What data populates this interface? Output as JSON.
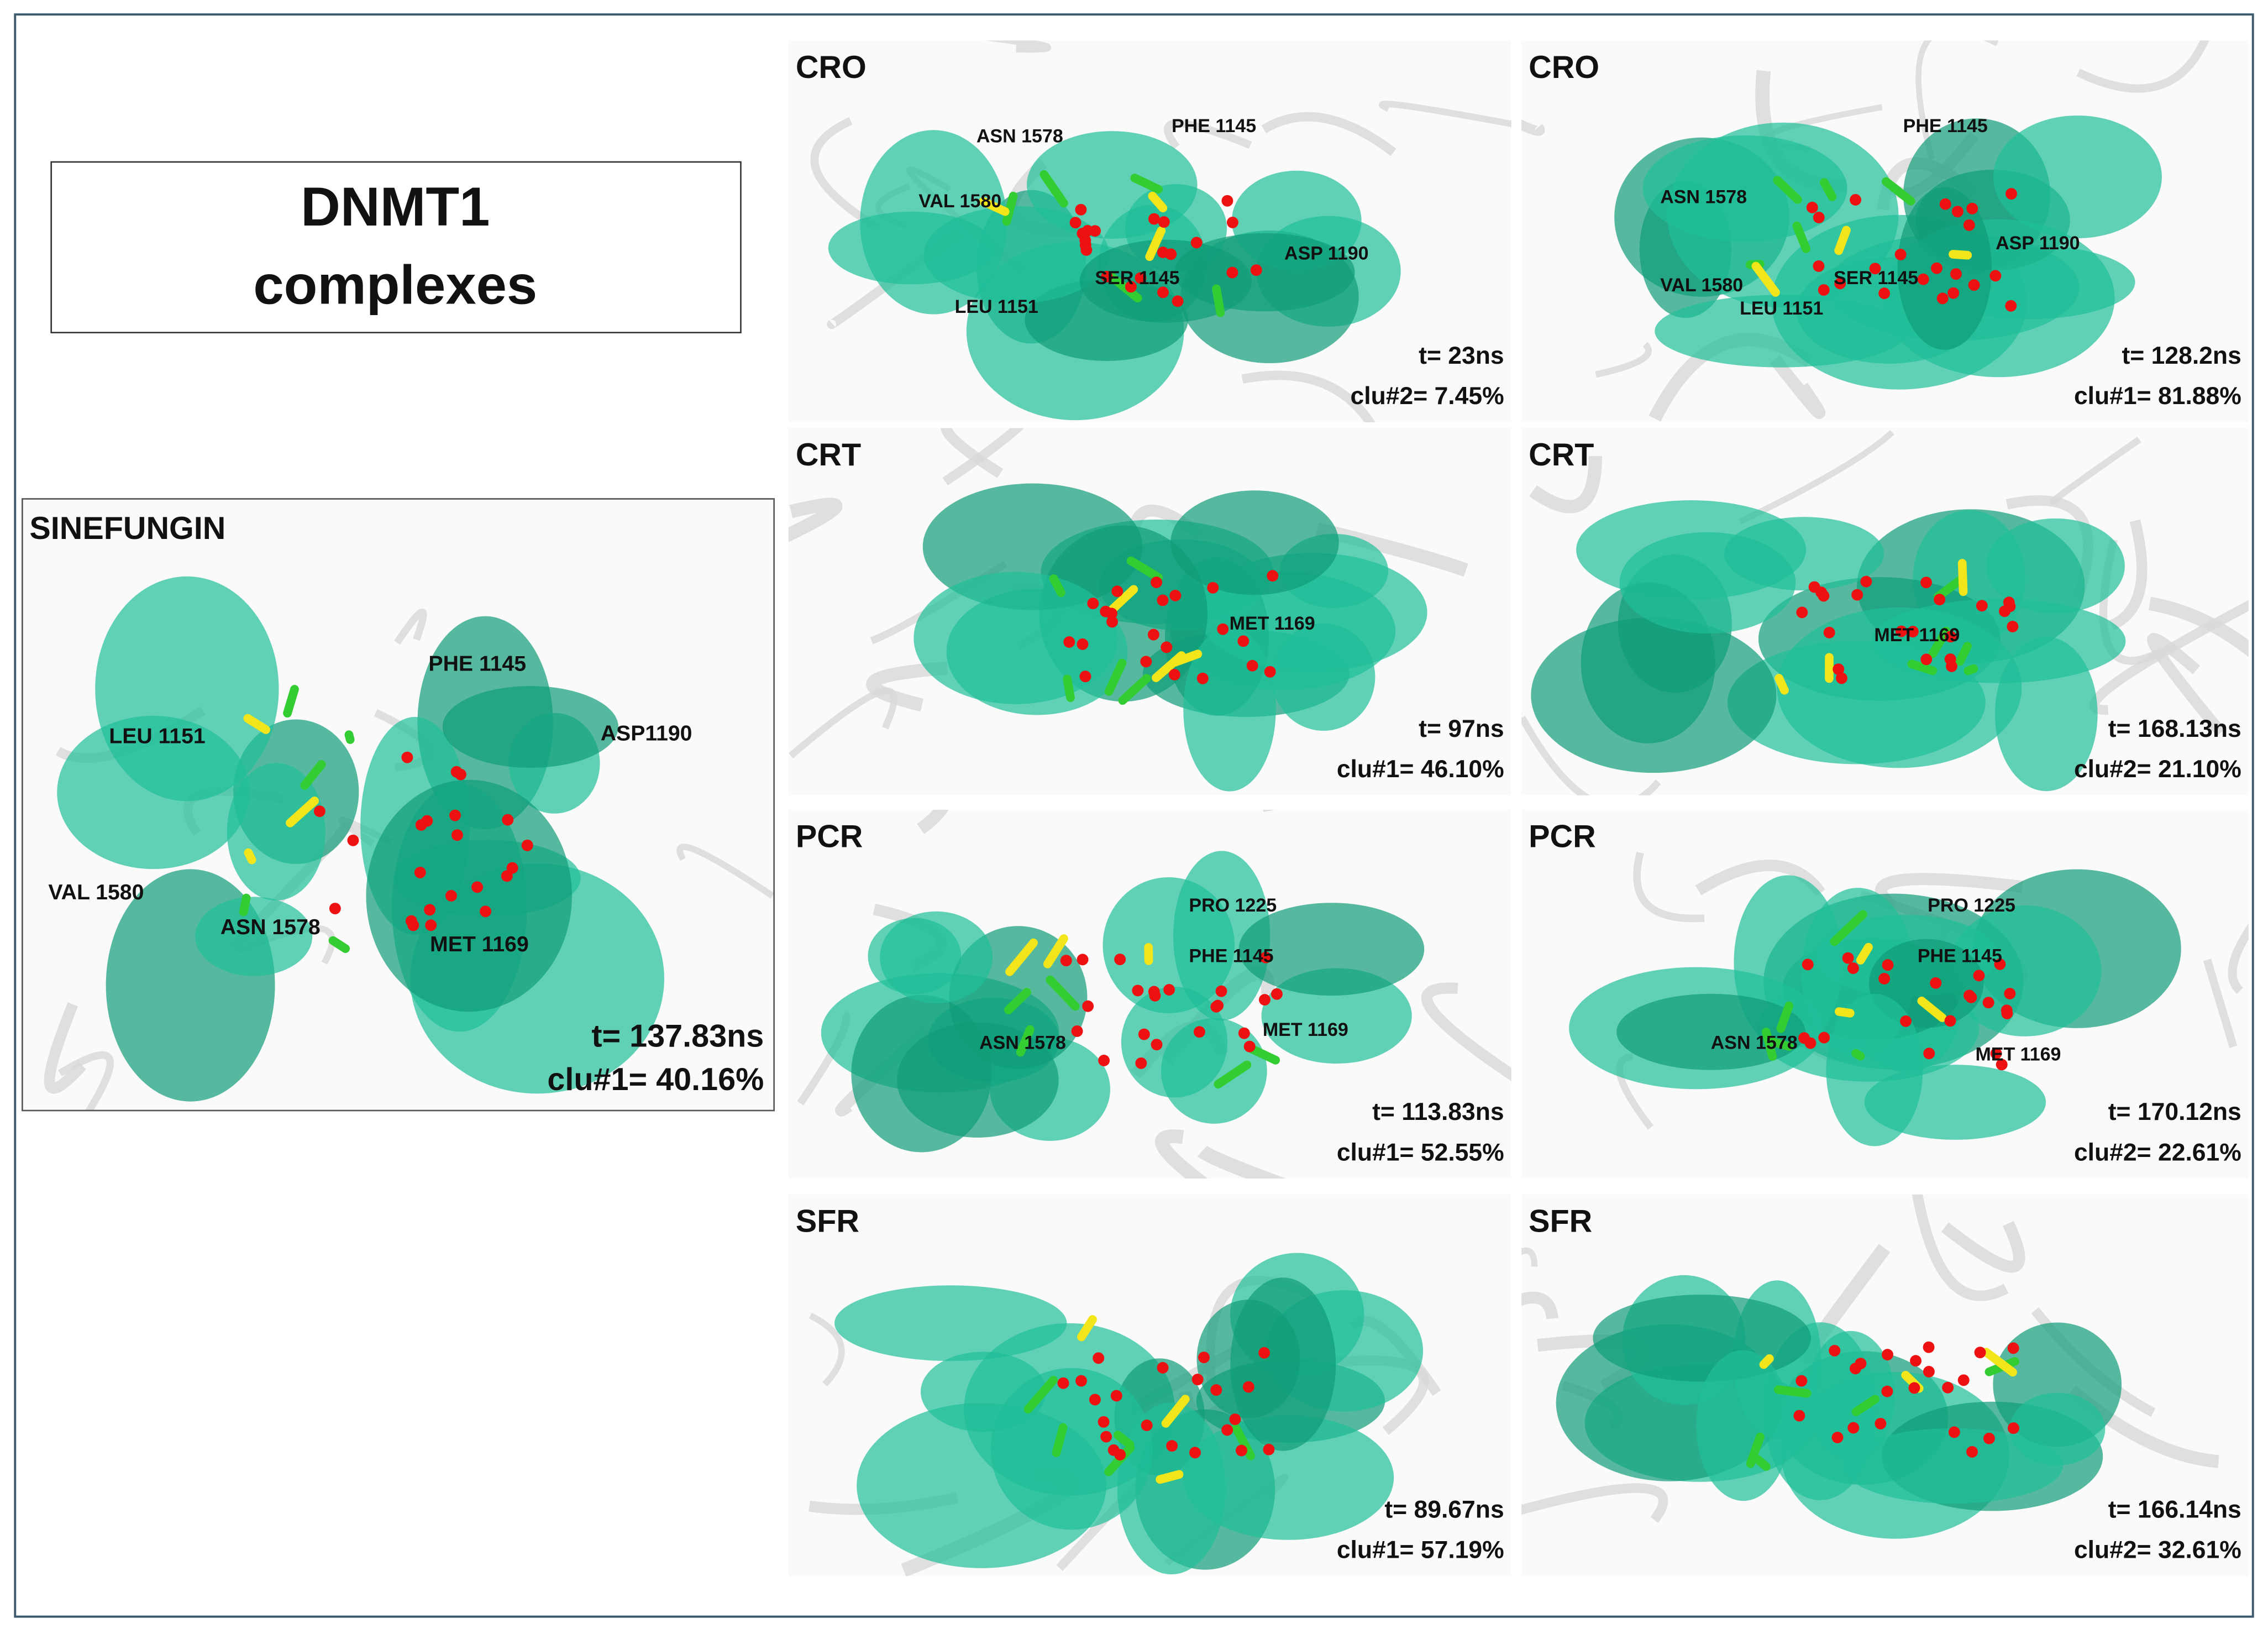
{
  "title": {
    "line1": "DNMT1",
    "line2": "complexes"
  },
  "main_panel": {
    "label": "SINEFUNGIN",
    "residues": [
      "LEU 1151",
      "VAL 1580",
      "ASN 1578",
      "PHE 1145",
      "ASP1190",
      "MET 1169"
    ],
    "time": "t= 137.83ns",
    "cluster": "clu#1= 40.16%"
  },
  "panels": [
    {
      "label": "CRO",
      "residues": [
        "ASN 1578",
        "VAL 1580",
        "LEU 1151",
        "SER 1145",
        "PHE 1145",
        "ASP 1190"
      ],
      "time": "t= 23ns",
      "cluster": "clu#2= 7.45%"
    },
    {
      "label": "CRO",
      "residues": [
        "ASN 1578",
        "VAL 1580",
        "LEU 1151",
        "SER 1145",
        "PHE 1145",
        "ASP 1190"
      ],
      "time": "t= 128.2ns",
      "cluster": "clu#1= 81.88%"
    },
    {
      "label": "CRT",
      "residues": [
        "MET 1169"
      ],
      "time": "t= 97ns",
      "cluster": "clu#1= 46.10%"
    },
    {
      "label": "CRT",
      "residues": [
        "MET 1169"
      ],
      "time": "t= 168.13ns",
      "cluster": "clu#2= 21.10%"
    },
    {
      "label": "PCR",
      "residues": [
        "PRO 1225",
        "PHE 1145",
        "ASN 1578",
        "MET 1169"
      ],
      "time": "t= 113.83ns",
      "cluster": "clu#1= 52.55%"
    },
    {
      "label": "PCR",
      "residues": [
        "PRO 1225",
        "PHE 1145",
        "ASN 1578",
        "MET 1169"
      ],
      "time": "t= 170.12ns",
      "cluster": "clu#2= 22.61%"
    },
    {
      "label": "SFR",
      "residues": [],
      "time": "t= 89.67ns",
      "cluster": "clu#1= 57.19%"
    },
    {
      "label": "SFR",
      "residues": [],
      "time": "t= 166.14ns",
      "cluster": "clu#2= 32.61%"
    }
  ]
}
